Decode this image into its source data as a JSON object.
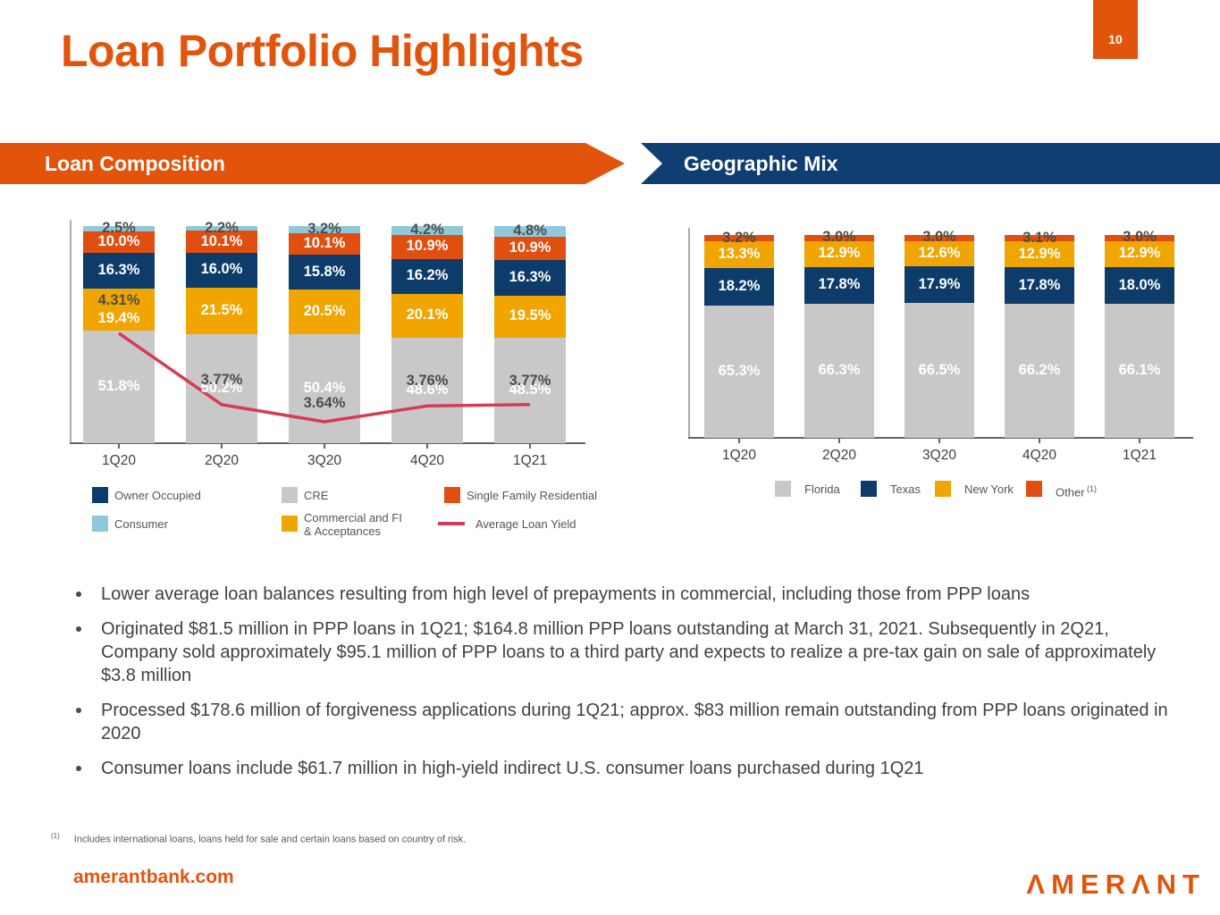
{
  "page": {
    "title": "Loan Portfolio Highlights",
    "page_number": "10"
  },
  "banners": {
    "left": "Loan Composition",
    "right": "Geographic Mix"
  },
  "colors": {
    "brand_orange": "#E2540C",
    "bar_orange": "#E04E10",
    "navy": "#0D3C6A",
    "banner_navy": "#0F3F72",
    "gold": "#F0A500",
    "gray": "#C8C8C8",
    "lightblue": "#8FC8D8",
    "red": "#D63B55",
    "dark_label": "#4D4D4D"
  },
  "chart_data": [
    {
      "type": "bar",
      "stacked": true,
      "title": "Loan Composition",
      "unit": "%",
      "ylim": [
        0,
        100
      ],
      "grid": false,
      "legend_position": "bottom",
      "categories": [
        "1Q20",
        "2Q20",
        "3Q20",
        "4Q20",
        "1Q21"
      ],
      "series": [
        {
          "name": "CRE",
          "color_key": "gray",
          "label_color": "white",
          "values": [
            51.8,
            50.2,
            50.4,
            48.6,
            48.5
          ]
        },
        {
          "name": "Commercial and FI & Acceptances",
          "color_key": "gold",
          "label_color": "white",
          "values": [
            19.4,
            21.5,
            20.5,
            20.1,
            19.5
          ]
        },
        {
          "name": "Owner Occupied",
          "color_key": "navy",
          "label_color": "white",
          "values": [
            16.3,
            16.0,
            15.8,
            16.2,
            16.3
          ]
        },
        {
          "name": "Single Family Residential",
          "color_key": "bar_orange",
          "label_color": "white",
          "values": [
            10.0,
            10.1,
            10.1,
            10.9,
            10.9
          ]
        },
        {
          "name": "Consumer",
          "color_key": "lightblue",
          "label_color": "dark",
          "values": [
            2.5,
            2.2,
            3.2,
            4.2,
            4.8
          ]
        }
      ],
      "line_series": {
        "name": "Average Loan Yield",
        "color_key": "red",
        "values": [
          4.31,
          3.77,
          3.64,
          3.76,
          3.77
        ],
        "labels": [
          "4.31%",
          "3.77%",
          "3.64%",
          "3.76%",
          "3.77%"
        ]
      },
      "legend": [
        {
          "label": "Owner Occupied",
          "color_key": "navy"
        },
        {
          "label": "CRE",
          "color_key": "gray"
        },
        {
          "label": "Single Family Residential",
          "color_key": "bar_orange"
        },
        {
          "label": "Consumer",
          "color_key": "lightblue"
        },
        {
          "label": "Commercial and FI & Acceptances",
          "color_key": "gold",
          "wrap": true
        },
        {
          "label": "Average Loan Yield",
          "color_key": "red",
          "swatch": "line"
        }
      ]
    },
    {
      "type": "bar",
      "stacked": true,
      "title": "Geographic Mix",
      "unit": "%",
      "ylim": [
        0,
        100
      ],
      "grid": false,
      "legend_position": "bottom",
      "categories": [
        "1Q20",
        "2Q20",
        "3Q20",
        "4Q20",
        "1Q21"
      ],
      "series": [
        {
          "name": "Florida",
          "color_key": "gray",
          "label_color": "white",
          "values": [
            65.3,
            66.3,
            66.5,
            66.2,
            66.1
          ]
        },
        {
          "name": "Texas",
          "color_key": "navy",
          "label_color": "white",
          "values": [
            18.2,
            17.8,
            17.9,
            17.8,
            18.0
          ]
        },
        {
          "name": "New York",
          "color_key": "gold",
          "label_color": "white",
          "values": [
            13.3,
            12.9,
            12.6,
            12.9,
            12.9
          ]
        },
        {
          "name": "Other",
          "color_key": "bar_orange",
          "label_color": "dark",
          "values": [
            3.2,
            3.0,
            3.0,
            3.1,
            3.0
          ]
        }
      ],
      "legend": [
        {
          "label": "Florida",
          "color_key": "gray"
        },
        {
          "label": "Texas",
          "color_key": "navy"
        },
        {
          "label": "New York",
          "color_key": "gold"
        },
        {
          "label": "Other",
          "color_key": "bar_orange",
          "sup": "(1)"
        }
      ]
    }
  ],
  "bullets": [
    "Lower average loan balances resulting from high level of prepayments in commercial, including those from PPP loans",
    "Originated $81.5 million in PPP loans in 1Q21; $164.8 million PPP loans outstanding at March 31, 2021. Subsequently in 2Q21, Company sold approximately $95.1 million of PPP loans to a third party and expects to realize a pre-tax gain on sale of approximately $3.8 million",
    "Processed $178.6 million of forgiveness applications during 1Q21; approx. $83 million remain outstanding from PPP loans originated in 2020",
    "Consumer loans include $61.7 million in high-yield indirect U.S. consumer loans purchased during 1Q21"
  ],
  "footnote": {
    "marker": "(1)",
    "text": "Includes international loans, loans held for sale and certain loans based on country of risk."
  },
  "footer": {
    "site": "amerantbank.com",
    "logo_text": "AMERANT"
  }
}
